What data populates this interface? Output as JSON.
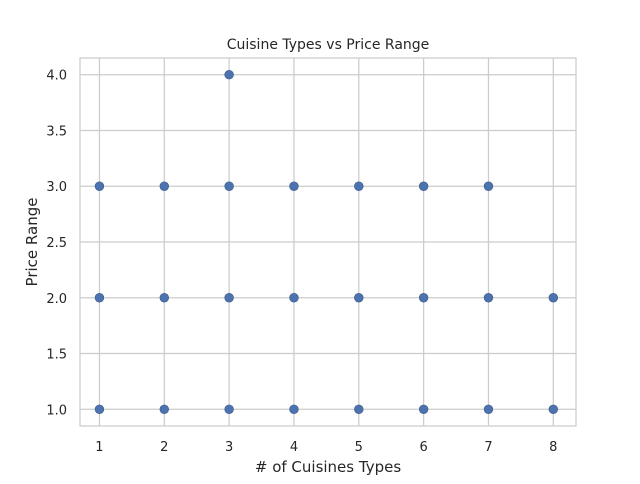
{
  "chart_data": {
    "type": "scatter",
    "title": "Cuisine Types vs Price Range",
    "xlabel": "# of Cuisines Types",
    "ylabel": "Price Range",
    "xlim": [
      0.7,
      8.35
    ],
    "ylim": [
      0.85,
      4.15
    ],
    "xticks": [
      "1",
      "2",
      "3",
      "4",
      "5",
      "6",
      "7",
      "8"
    ],
    "yticks": [
      "1.0",
      "1.5",
      "2.0",
      "2.5",
      "3.0",
      "3.5",
      "4.0"
    ],
    "grid": true,
    "marker_color": "#4c72b0",
    "points": [
      {
        "x": 1,
        "y": 1
      },
      {
        "x": 1,
        "y": 2
      },
      {
        "x": 1,
        "y": 3
      },
      {
        "x": 2,
        "y": 1
      },
      {
        "x": 2,
        "y": 2
      },
      {
        "x": 2,
        "y": 3
      },
      {
        "x": 3,
        "y": 1
      },
      {
        "x": 3,
        "y": 2
      },
      {
        "x": 3,
        "y": 3
      },
      {
        "x": 3,
        "y": 4
      },
      {
        "x": 4,
        "y": 1
      },
      {
        "x": 4,
        "y": 2
      },
      {
        "x": 4,
        "y": 3
      },
      {
        "x": 5,
        "y": 1
      },
      {
        "x": 5,
        "y": 2
      },
      {
        "x": 5,
        "y": 3
      },
      {
        "x": 6,
        "y": 1
      },
      {
        "x": 6,
        "y": 2
      },
      {
        "x": 6,
        "y": 3
      },
      {
        "x": 7,
        "y": 1
      },
      {
        "x": 7,
        "y": 2
      },
      {
        "x": 7,
        "y": 3
      },
      {
        "x": 8,
        "y": 1
      },
      {
        "x": 8,
        "y": 2
      }
    ]
  }
}
